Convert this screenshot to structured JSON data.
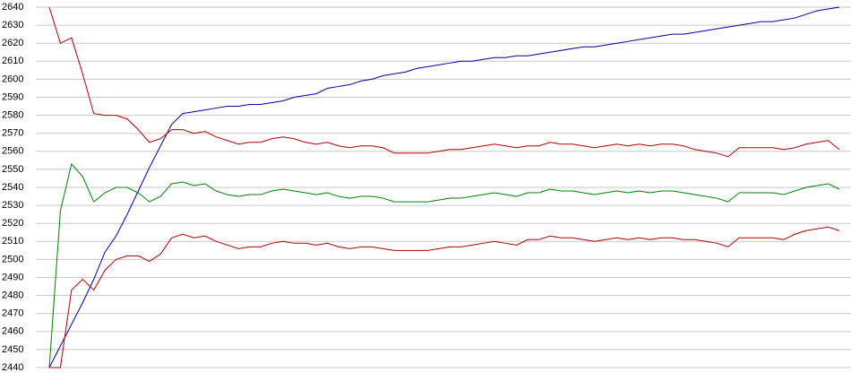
{
  "chart_data": {
    "type": "line",
    "ylim": [
      2440,
      2640
    ],
    "yticks": [
      2440,
      2450,
      2460,
      2470,
      2480,
      2490,
      2500,
      2510,
      2520,
      2530,
      2540,
      2550,
      2560,
      2570,
      2580,
      2590,
      2600,
      2610,
      2620,
      2630,
      2640
    ],
    "grid": true,
    "series": [
      {
        "color": "#0000a0",
        "values": [
          2440,
          2452,
          2464,
          2476,
          2489,
          2504,
          2513,
          2525,
          2538,
          2551,
          2563,
          2575,
          2581,
          2582,
          2583,
          2584,
          2585,
          2585,
          2586,
          2586,
          2587,
          2588,
          2590,
          2591,
          2592,
          2595,
          2596,
          2597,
          2599,
          2600,
          2602,
          2603,
          2604,
          2606,
          2607,
          2608,
          2609,
          2610,
          2610,
          2611,
          2612,
          2612,
          2613,
          2613,
          2614,
          2615,
          2616,
          2617,
          2618,
          2618,
          2619,
          2620,
          2621,
          2622,
          2623,
          2624,
          2625,
          2625,
          2626,
          2627,
          2628,
          2629,
          2630,
          2631,
          2632,
          2632,
          2633,
          2634,
          2636,
          2638,
          2639,
          2640
        ]
      },
      {
        "color": "#b00000",
        "values": [
          2640,
          2620,
          2623,
          2603,
          2581,
          2580,
          2580,
          2578,
          2572,
          2565,
          2567,
          2572,
          2572,
          2570,
          2571,
          2568,
          2566,
          2564,
          2565,
          2565,
          2567,
          2568,
          2567,
          2565,
          2564,
          2565,
          2563,
          2562,
          2563,
          2563,
          2562,
          2559,
          2559,
          2559,
          2559,
          2560,
          2561,
          2561,
          2562,
          2563,
          2564,
          2563,
          2562,
          2563,
          2563,
          2565,
          2564,
          2564,
          2563,
          2562,
          2563,
          2564,
          2563,
          2564,
          2563,
          2564,
          2564,
          2563,
          2561,
          2560,
          2559,
          2557,
          2562,
          2562,
          2562,
          2562,
          2561,
          2562,
          2564,
          2565,
          2566,
          2561
        ]
      },
      {
        "color": "#008000",
        "values": [
          2440,
          2527,
          2553,
          2546,
          2532,
          2537,
          2540,
          2540,
          2537,
          2532,
          2535,
          2542,
          2543,
          2541,
          2542,
          2538,
          2536,
          2535,
          2536,
          2536,
          2538,
          2539,
          2538,
          2537,
          2536,
          2537,
          2535,
          2534,
          2535,
          2535,
          2534,
          2532,
          2532,
          2532,
          2532,
          2533,
          2534,
          2534,
          2535,
          2536,
          2537,
          2536,
          2535,
          2537,
          2537,
          2539,
          2538,
          2538,
          2537,
          2536,
          2537,
          2538,
          2537,
          2538,
          2537,
          2538,
          2538,
          2537,
          2536,
          2535,
          2534,
          2532,
          2537,
          2537,
          2537,
          2537,
          2536,
          2538,
          2540,
          2541,
          2542,
          2539
        ]
      },
      {
        "color": "#b00000",
        "values": [
          2440,
          2440,
          2483,
          2489,
          2483,
          2494,
          2500,
          2502,
          2502,
          2499,
          2503,
          2512,
          2514,
          2512,
          2513,
          2510,
          2508,
          2506,
          2507,
          2507,
          2509,
          2510,
          2509,
          2509,
          2508,
          2509,
          2507,
          2506,
          2507,
          2507,
          2506,
          2505,
          2505,
          2505,
          2505,
          2506,
          2507,
          2507,
          2508,
          2509,
          2510,
          2509,
          2508,
          2511,
          2511,
          2513,
          2512,
          2512,
          2511,
          2510,
          2511,
          2512,
          2511,
          2512,
          2511,
          2512,
          2512,
          2511,
          2511,
          2510,
          2509,
          2507,
          2512,
          2512,
          2512,
          2512,
          2511,
          2514,
          2516,
          2517,
          2518,
          2516
        ]
      }
    ]
  }
}
